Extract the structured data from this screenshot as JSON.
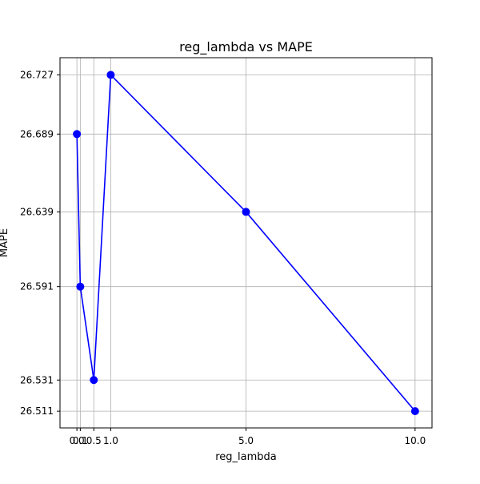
{
  "chart_data": {
    "type": "line",
    "title": "reg_lambda vs MAPE",
    "xlabel": "reg_lambda",
    "ylabel": "MAPE",
    "x": [
      0.0,
      0.1,
      0.5,
      1.0,
      5.0,
      10.0
    ],
    "series": [
      {
        "values": [
          26.689,
          26.591,
          26.531,
          26.727,
          26.639,
          26.511
        ],
        "color": "#0000ff",
        "marker": "circle"
      }
    ],
    "xticks": [
      0.0,
      0.1,
      0.5,
      1.0,
      5.0,
      10.0
    ],
    "xtick_labels": [
      "0.0",
      "0.1",
      "0.5",
      "1.0",
      "5.0",
      "10.0"
    ],
    "yticks": [
      26.511,
      26.531,
      26.591,
      26.639,
      26.689,
      26.727
    ],
    "ytick_labels": [
      "26.511",
      "26.531",
      "26.591",
      "26.639",
      "26.689",
      "26.727"
    ],
    "xlim": [
      -0.5,
      10.5
    ],
    "ylim": [
      26.50025,
      26.73805
    ],
    "grid": true,
    "colors": {
      "line": "#0000ff",
      "grid": "#b0b0b0",
      "axes": "#000000"
    }
  }
}
